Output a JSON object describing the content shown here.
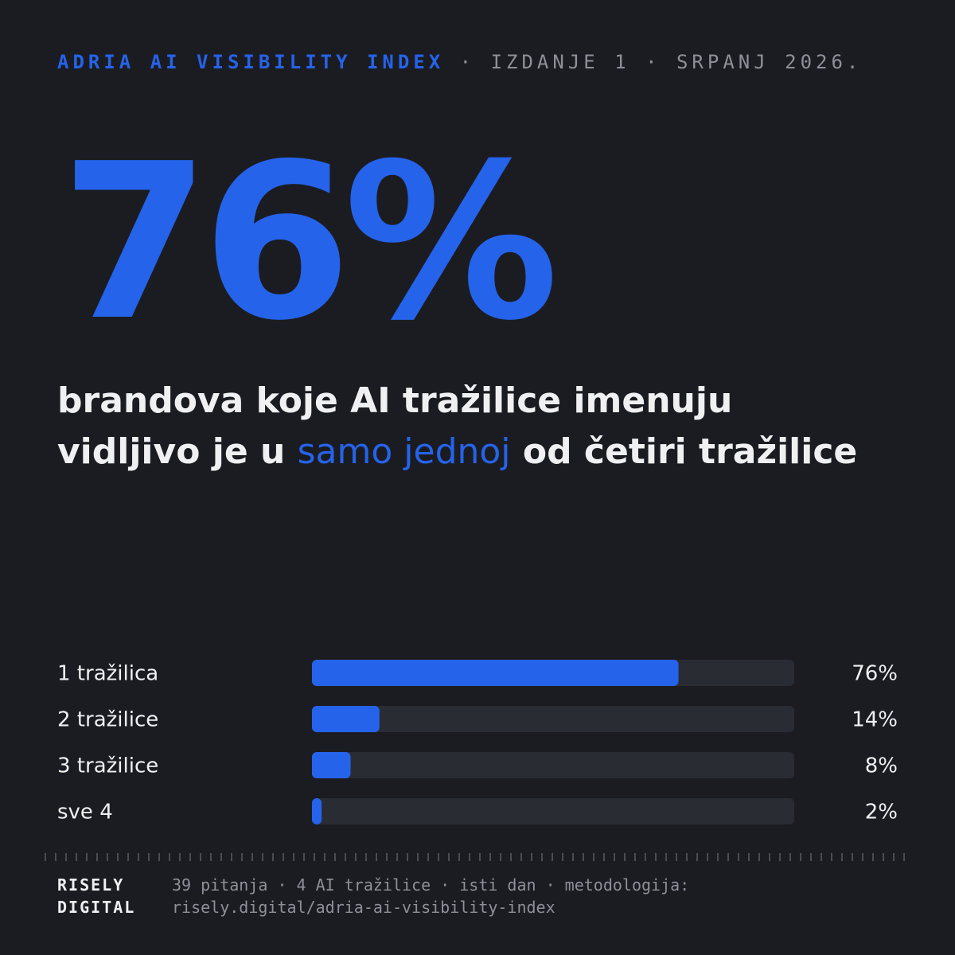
{
  "header": {
    "brand": "ADRIA AI VISIBILITY INDEX",
    "issue": " · IZDANJE 1 · SRPANJ 2026."
  },
  "hero": {
    "value": "76%",
    "line1": "brandova koje AI tražilice imenuju",
    "line2_pre": "vidljivo je u ",
    "line2_highlight": "samo jednoj",
    "line2_post": " od četiri tražilice"
  },
  "chart_data": {
    "type": "bar",
    "orientation": "horizontal",
    "categories": [
      "1 tražilica",
      "2 tražilice",
      "3 tražilice",
      "sve 4"
    ],
    "values": [
      76,
      14,
      8,
      2
    ],
    "value_labels": [
      "76%",
      "14%",
      "8%",
      "2%"
    ],
    "xlim": [
      0,
      100
    ],
    "grid": false
  },
  "footer": {
    "logo_line1": "RISELY",
    "logo_line2": "DIGITAL",
    "meta_line1": "39 pitanja · 4 AI tražilice · isti dan · metodologija:",
    "meta_line2": "risely.digital/adria-ai-visibility-index"
  },
  "colors": {
    "background": "#1b1c21",
    "accent": "#2563eb",
    "track": "#2a2c34",
    "text": "#f0f0f2",
    "muted": "#8e9099"
  }
}
